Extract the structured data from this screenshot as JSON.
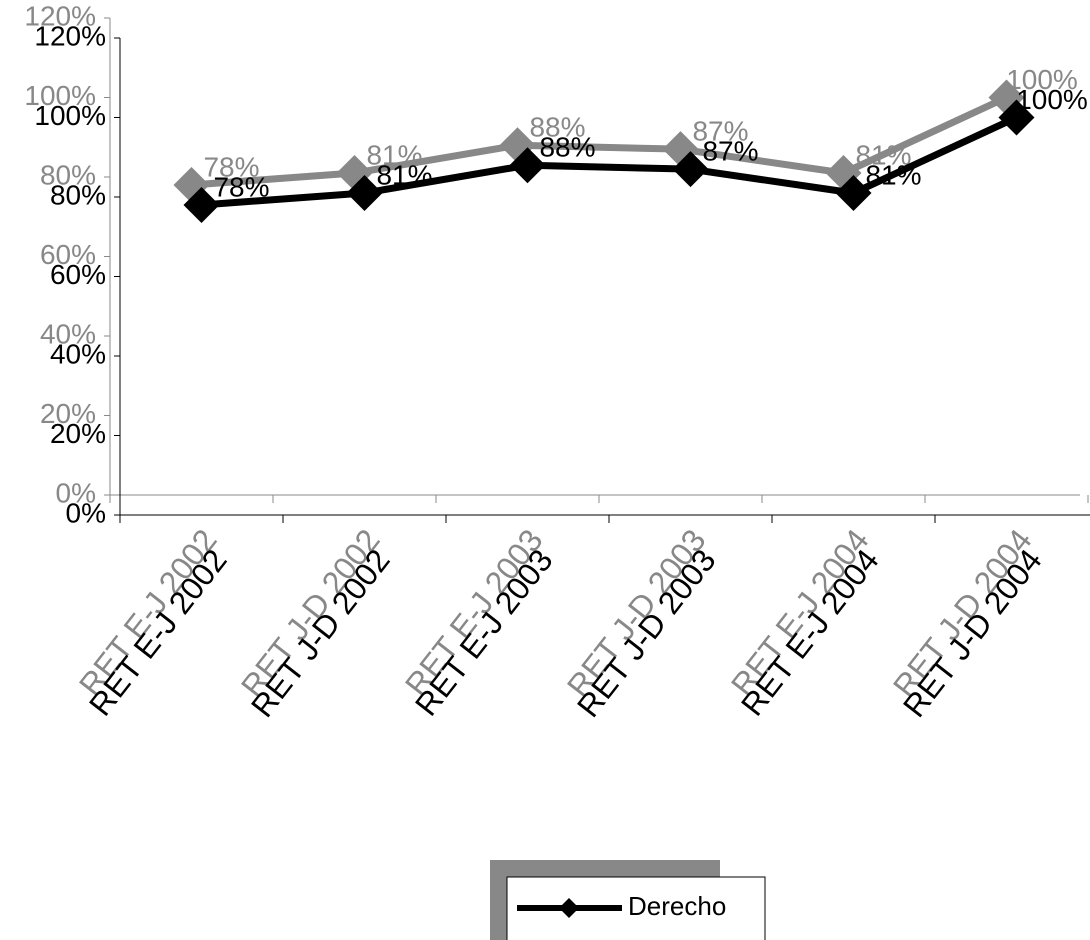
{
  "chart_data": {
    "type": "line",
    "categories": [
      "RET E-J 2002",
      "RET J-D 2002",
      "RET E-J 2003",
      "RET J-D 2003",
      "RET E-J 2004",
      "RET J-D 2004"
    ],
    "series": [
      {
        "name": "Derecho",
        "color": "#000000",
        "values": [
          78,
          81,
          88,
          87,
          81,
          100
        ],
        "value_labels": [
          "78%",
          "81%",
          "88%",
          "87%",
          "81%",
          "100%"
        ]
      }
    ],
    "ylim": [
      0,
      120
    ],
    "yticks": [
      {
        "value": 0,
        "label": "0%"
      },
      {
        "value": 20,
        "label": "20%"
      },
      {
        "value": 40,
        "label": "40%"
      },
      {
        "value": 60,
        "label": "60%"
      },
      {
        "value": 80,
        "label": "80%"
      },
      {
        "value": 100,
        "label": "100%"
      },
      {
        "value": 120,
        "label": "120%"
      }
    ],
    "shadow_color": "#888888",
    "legend": "bottom"
  }
}
